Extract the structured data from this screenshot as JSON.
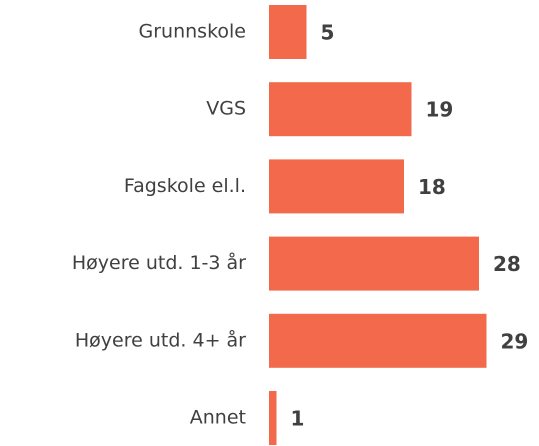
{
  "chart_data": {
    "type": "bar",
    "orientation": "horizontal",
    "categories": [
      "Grunnskole",
      "VGS",
      "Fagskole el.l.",
      "Høyere utd. 1-3 år",
      "Høyere utd. 4+ år",
      "Annet"
    ],
    "values": [
      5,
      19,
      18,
      28,
      29,
      1
    ],
    "color": "#f26a4b"
  }
}
